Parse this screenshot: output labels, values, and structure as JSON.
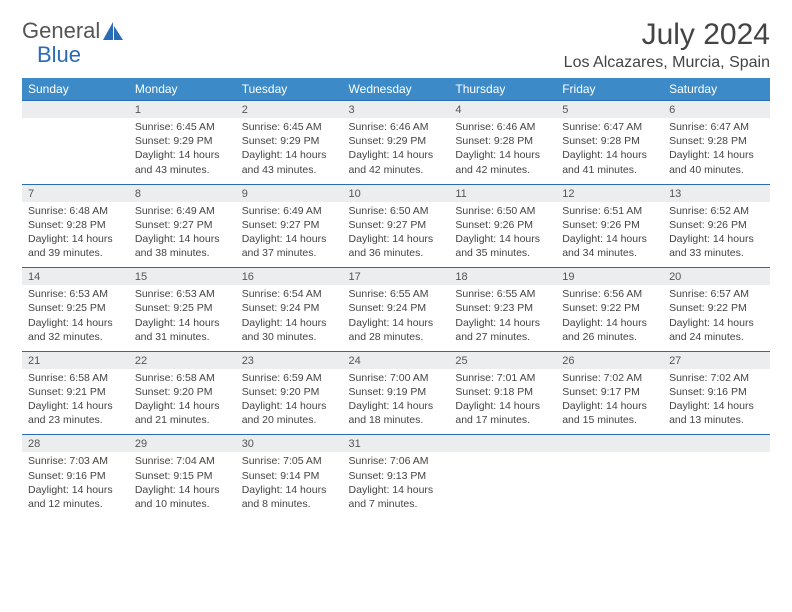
{
  "logo": {
    "text1": "General",
    "text2": "Blue"
  },
  "title": "July 2024",
  "location": "Los Alcazares, Murcia, Spain",
  "colors": {
    "header_bg": "#3c8bc8",
    "header_text": "#ffffff",
    "daynum_bg": "#ecedee",
    "border": "#2a6cb4",
    "logo_blue": "#2a6cb4",
    "logo_gray": "#555555"
  },
  "weekdays": [
    "Sunday",
    "Monday",
    "Tuesday",
    "Wednesday",
    "Thursday",
    "Friday",
    "Saturday"
  ],
  "weeks": [
    {
      "nums": [
        "",
        "1",
        "2",
        "3",
        "4",
        "5",
        "6"
      ],
      "cells": [
        "",
        "Sunrise: 6:45 AM\nSunset: 9:29 PM\nDaylight: 14 hours and 43 minutes.",
        "Sunrise: 6:45 AM\nSunset: 9:29 PM\nDaylight: 14 hours and 43 minutes.",
        "Sunrise: 6:46 AM\nSunset: 9:29 PM\nDaylight: 14 hours and 42 minutes.",
        "Sunrise: 6:46 AM\nSunset: 9:28 PM\nDaylight: 14 hours and 42 minutes.",
        "Sunrise: 6:47 AM\nSunset: 9:28 PM\nDaylight: 14 hours and 41 minutes.",
        "Sunrise: 6:47 AM\nSunset: 9:28 PM\nDaylight: 14 hours and 40 minutes."
      ]
    },
    {
      "nums": [
        "7",
        "8",
        "9",
        "10",
        "11",
        "12",
        "13"
      ],
      "cells": [
        "Sunrise: 6:48 AM\nSunset: 9:28 PM\nDaylight: 14 hours and 39 minutes.",
        "Sunrise: 6:49 AM\nSunset: 9:27 PM\nDaylight: 14 hours and 38 minutes.",
        "Sunrise: 6:49 AM\nSunset: 9:27 PM\nDaylight: 14 hours and 37 minutes.",
        "Sunrise: 6:50 AM\nSunset: 9:27 PM\nDaylight: 14 hours and 36 minutes.",
        "Sunrise: 6:50 AM\nSunset: 9:26 PM\nDaylight: 14 hours and 35 minutes.",
        "Sunrise: 6:51 AM\nSunset: 9:26 PM\nDaylight: 14 hours and 34 minutes.",
        "Sunrise: 6:52 AM\nSunset: 9:26 PM\nDaylight: 14 hours and 33 minutes."
      ]
    },
    {
      "nums": [
        "14",
        "15",
        "16",
        "17",
        "18",
        "19",
        "20"
      ],
      "cells": [
        "Sunrise: 6:53 AM\nSunset: 9:25 PM\nDaylight: 14 hours and 32 minutes.",
        "Sunrise: 6:53 AM\nSunset: 9:25 PM\nDaylight: 14 hours and 31 minutes.",
        "Sunrise: 6:54 AM\nSunset: 9:24 PM\nDaylight: 14 hours and 30 minutes.",
        "Sunrise: 6:55 AM\nSunset: 9:24 PM\nDaylight: 14 hours and 28 minutes.",
        "Sunrise: 6:55 AM\nSunset: 9:23 PM\nDaylight: 14 hours and 27 minutes.",
        "Sunrise: 6:56 AM\nSunset: 9:22 PM\nDaylight: 14 hours and 26 minutes.",
        "Sunrise: 6:57 AM\nSunset: 9:22 PM\nDaylight: 14 hours and 24 minutes."
      ]
    },
    {
      "nums": [
        "21",
        "22",
        "23",
        "24",
        "25",
        "26",
        "27"
      ],
      "cells": [
        "Sunrise: 6:58 AM\nSunset: 9:21 PM\nDaylight: 14 hours and 23 minutes.",
        "Sunrise: 6:58 AM\nSunset: 9:20 PM\nDaylight: 14 hours and 21 minutes.",
        "Sunrise: 6:59 AM\nSunset: 9:20 PM\nDaylight: 14 hours and 20 minutes.",
        "Sunrise: 7:00 AM\nSunset: 9:19 PM\nDaylight: 14 hours and 18 minutes.",
        "Sunrise: 7:01 AM\nSunset: 9:18 PM\nDaylight: 14 hours and 17 minutes.",
        "Sunrise: 7:02 AM\nSunset: 9:17 PM\nDaylight: 14 hours and 15 minutes.",
        "Sunrise: 7:02 AM\nSunset: 9:16 PM\nDaylight: 14 hours and 13 minutes."
      ]
    },
    {
      "nums": [
        "28",
        "29",
        "30",
        "31",
        "",
        "",
        ""
      ],
      "cells": [
        "Sunrise: 7:03 AM\nSunset: 9:16 PM\nDaylight: 14 hours and 12 minutes.",
        "Sunrise: 7:04 AM\nSunset: 9:15 PM\nDaylight: 14 hours and 10 minutes.",
        "Sunrise: 7:05 AM\nSunset: 9:14 PM\nDaylight: 14 hours and 8 minutes.",
        "Sunrise: 7:06 AM\nSunset: 9:13 PM\nDaylight: 14 hours and 7 minutes.",
        "",
        "",
        ""
      ]
    }
  ]
}
